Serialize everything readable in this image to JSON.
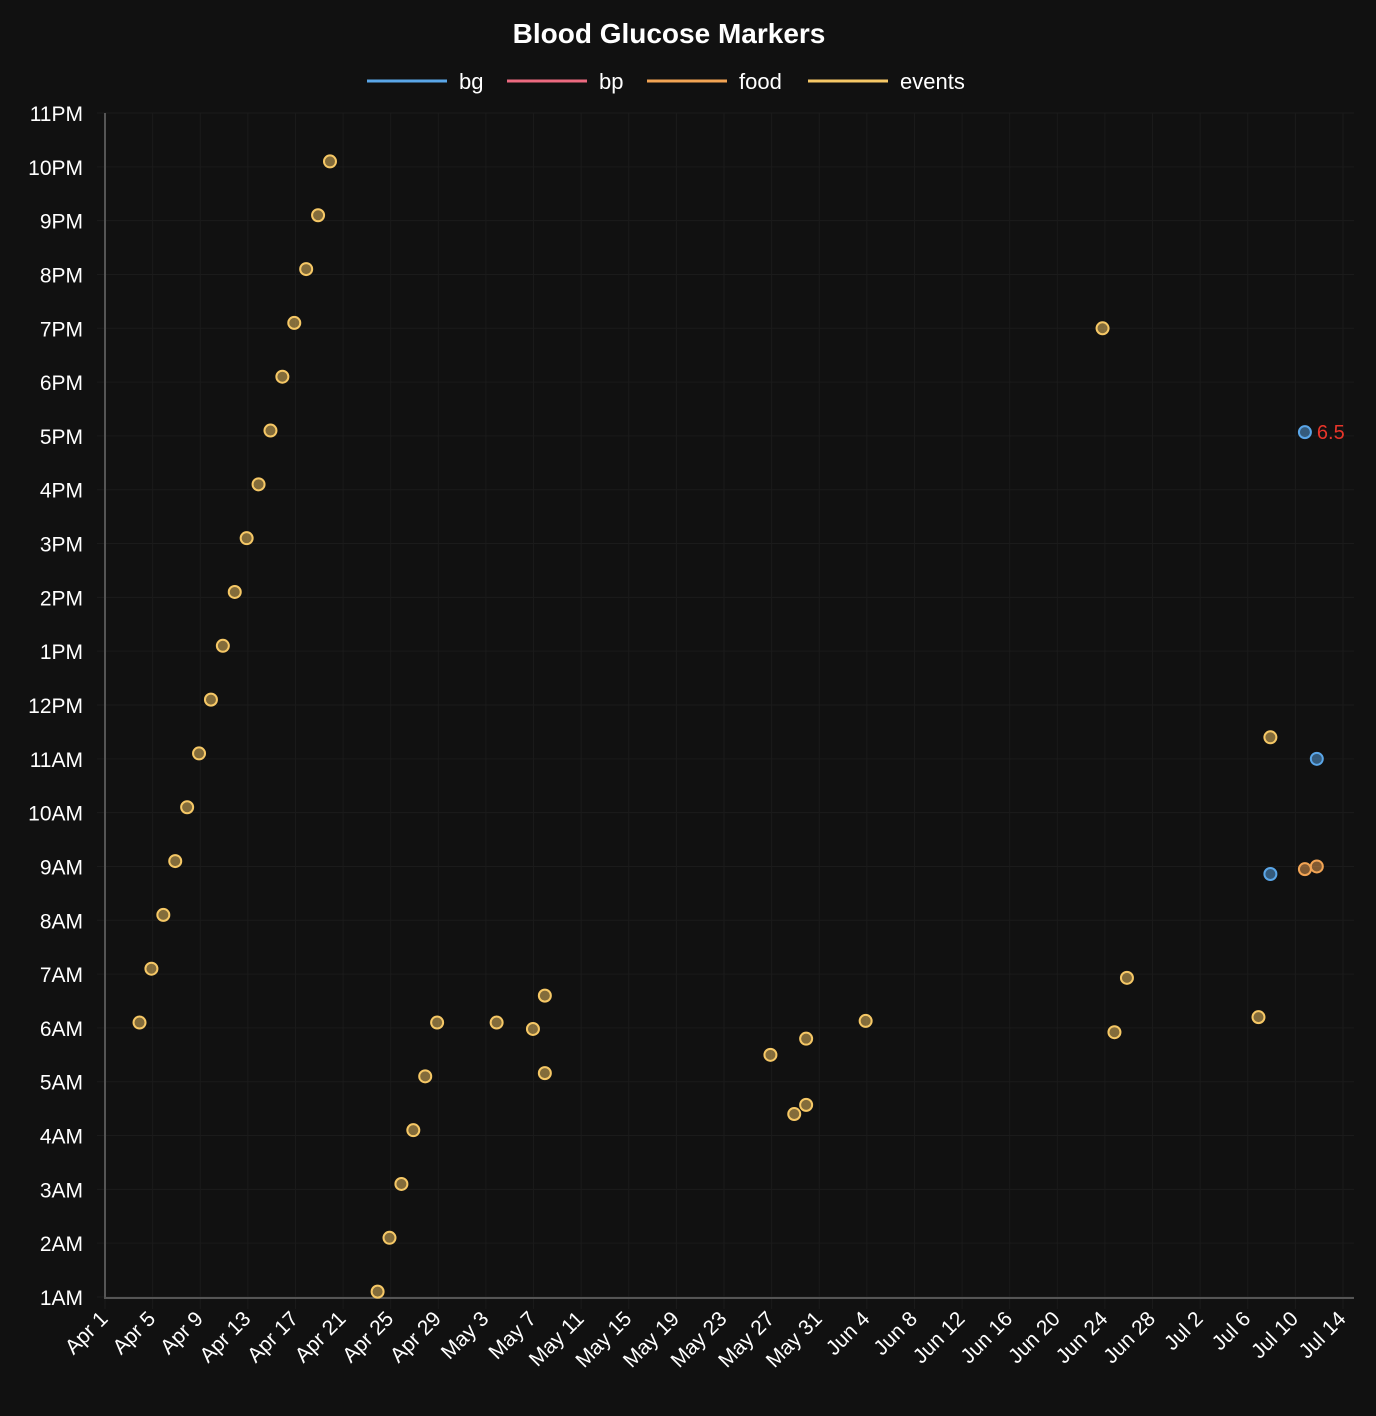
{
  "chart_data": {
    "type": "scatter",
    "title": "Blood Glucose Markers",
    "xlabel": "",
    "ylabel": "",
    "x_type": "date",
    "x_origin": "Apr 1",
    "xlim_days": [
      0,
      104
    ],
    "ylim_hours": [
      1,
      23
    ],
    "grid": true,
    "legend_position": "top-center",
    "x_ticks": [
      {
        "day": 0,
        "label": "Apr 1"
      },
      {
        "day": 4,
        "label": "Apr 5"
      },
      {
        "day": 8,
        "label": "Apr 9"
      },
      {
        "day": 12,
        "label": "Apr 13"
      },
      {
        "day": 16,
        "label": "Apr 17"
      },
      {
        "day": 20,
        "label": "Apr 21"
      },
      {
        "day": 24,
        "label": "Apr 25"
      },
      {
        "day": 28,
        "label": "Apr 29"
      },
      {
        "day": 32,
        "label": "May 3"
      },
      {
        "day": 36,
        "label": "May 7"
      },
      {
        "day": 40,
        "label": "May 11"
      },
      {
        "day": 44,
        "label": "May 15"
      },
      {
        "day": 48,
        "label": "May 19"
      },
      {
        "day": 52,
        "label": "May 23"
      },
      {
        "day": 56,
        "label": "May 27"
      },
      {
        "day": 60,
        "label": "May 31"
      },
      {
        "day": 64,
        "label": "Jun 4"
      },
      {
        "day": 68,
        "label": "Jun 8"
      },
      {
        "day": 72,
        "label": "Jun 12"
      },
      {
        "day": 76,
        "label": "Jun 16"
      },
      {
        "day": 80,
        "label": "Jun 20"
      },
      {
        "day": 84,
        "label": "Jun 24"
      },
      {
        "day": 88,
        "label": "Jun 28"
      },
      {
        "day": 92,
        "label": "Jul 2"
      },
      {
        "day": 96,
        "label": "Jul 6"
      },
      {
        "day": 100,
        "label": "Jul 10"
      },
      {
        "day": 104,
        "label": "Jul 14"
      }
    ],
    "y_ticks": [
      {
        "hour": 1,
        "label": "1AM"
      },
      {
        "hour": 2,
        "label": "2AM"
      },
      {
        "hour": 3,
        "label": "3AM"
      },
      {
        "hour": 4,
        "label": "4AM"
      },
      {
        "hour": 5,
        "label": "5AM"
      },
      {
        "hour": 6,
        "label": "6AM"
      },
      {
        "hour": 7,
        "label": "7AM"
      },
      {
        "hour": 8,
        "label": "8AM"
      },
      {
        "hour": 9,
        "label": "9AM"
      },
      {
        "hour": 10,
        "label": "10AM"
      },
      {
        "hour": 11,
        "label": "11AM"
      },
      {
        "hour": 12,
        "label": "12PM"
      },
      {
        "hour": 13,
        "label": "1PM"
      },
      {
        "hour": 14,
        "label": "2PM"
      },
      {
        "hour": 15,
        "label": "3PM"
      },
      {
        "hour": 16,
        "label": "4PM"
      },
      {
        "hour": 17,
        "label": "5PM"
      },
      {
        "hour": 18,
        "label": "6PM"
      },
      {
        "hour": 19,
        "label": "7PM"
      },
      {
        "hour": 20,
        "label": "8PM"
      },
      {
        "hour": 21,
        "label": "9PM"
      },
      {
        "hour": 22,
        "label": "10PM"
      },
      {
        "hour": 23,
        "label": "11PM"
      }
    ],
    "series": [
      {
        "name": "bg",
        "color": "#5aa6e8",
        "points": [
          {
            "day": 100.8,
            "hour": 17.07,
            "label": "6.5",
            "label_color": "#e8352a"
          },
          {
            "day": 101.8,
            "hour": 11.0
          },
          {
            "day": 97.9,
            "hour": 8.86
          }
        ]
      },
      {
        "name": "bp",
        "color": "#ec6a80",
        "points": []
      },
      {
        "name": "food",
        "color": "#f2a454",
        "points": [
          {
            "day": 100.8,
            "hour": 8.95
          },
          {
            "day": 101.8,
            "hour": 9.0
          }
        ]
      },
      {
        "name": "events",
        "color": "#f6c866",
        "points": [
          {
            "day": 2.9,
            "hour": 6.1
          },
          {
            "day": 3.9,
            "hour": 7.1
          },
          {
            "day": 4.9,
            "hour": 8.1
          },
          {
            "day": 5.9,
            "hour": 9.1
          },
          {
            "day": 6.9,
            "hour": 10.1
          },
          {
            "day": 7.9,
            "hour": 11.1
          },
          {
            "day": 8.9,
            "hour": 12.1
          },
          {
            "day": 9.9,
            "hour": 13.1
          },
          {
            "day": 10.9,
            "hour": 14.1
          },
          {
            "day": 11.9,
            "hour": 15.1
          },
          {
            "day": 12.9,
            "hour": 16.1
          },
          {
            "day": 13.9,
            "hour": 17.1
          },
          {
            "day": 14.9,
            "hour": 18.1
          },
          {
            "day": 15.9,
            "hour": 19.1
          },
          {
            "day": 16.9,
            "hour": 20.1
          },
          {
            "day": 17.9,
            "hour": 21.1
          },
          {
            "day": 18.9,
            "hour": 22.1
          },
          {
            "day": 22.9,
            "hour": 1.1
          },
          {
            "day": 23.9,
            "hour": 2.1
          },
          {
            "day": 24.9,
            "hour": 3.1
          },
          {
            "day": 25.9,
            "hour": 4.1
          },
          {
            "day": 26.9,
            "hour": 5.1
          },
          {
            "day": 27.9,
            "hour": 6.1
          },
          {
            "day": 32.9,
            "hour": 6.1
          },
          {
            "day": 35.95,
            "hour": 5.98
          },
          {
            "day": 36.95,
            "hour": 6.6
          },
          {
            "day": 36.95,
            "hour": 5.16
          },
          {
            "day": 55.9,
            "hour": 5.5
          },
          {
            "day": 57.9,
            "hour": 4.4
          },
          {
            "day": 58.9,
            "hour": 5.8
          },
          {
            "day": 58.9,
            "hour": 4.57
          },
          {
            "day": 63.9,
            "hour": 6.13
          },
          {
            "day": 83.8,
            "hour": 19.0
          },
          {
            "day": 84.8,
            "hour": 5.92
          },
          {
            "day": 85.85,
            "hour": 6.93
          },
          {
            "day": 96.9,
            "hour": 6.2
          },
          {
            "day": 97.9,
            "hour": 11.4
          }
        ]
      }
    ]
  }
}
